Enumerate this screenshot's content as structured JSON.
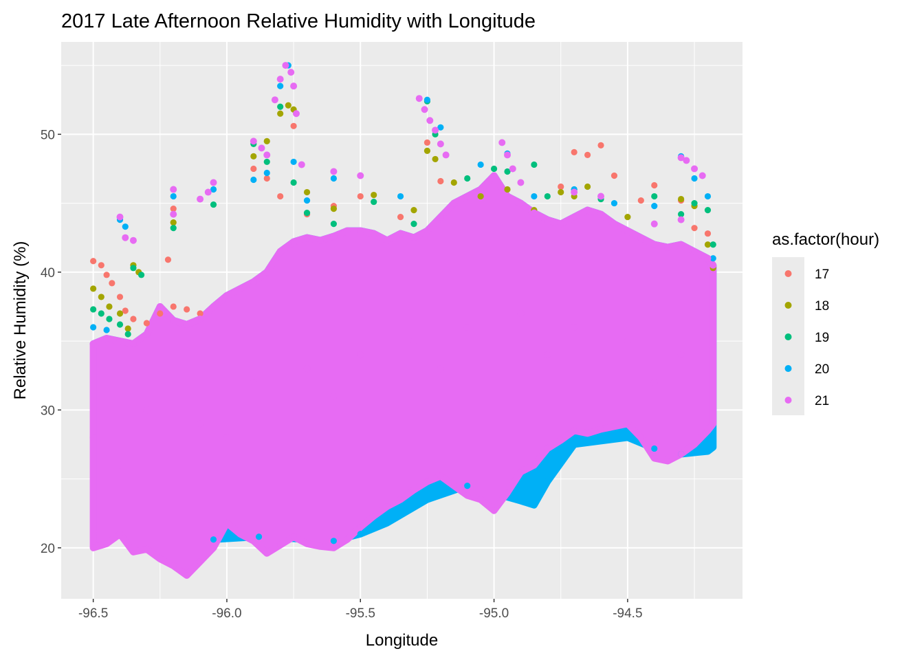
{
  "chart_data": {
    "type": "scatter",
    "title": "2017 Late Afternoon Relative Humidity with Longitude",
    "xlabel": "Longitude",
    "ylabel": "Relative Humidity (%)",
    "xlim": [
      -96.62,
      -94.07
    ],
    "ylim": [
      16.3,
      56.7
    ],
    "x_ticks": [
      -96.5,
      -96.0,
      -95.5,
      -95.0,
      -94.5
    ],
    "x_tick_labels": [
      "-96.5",
      "-96.0",
      "-95.5",
      "-95.0",
      "-94.5"
    ],
    "y_ticks": [
      20,
      30,
      40,
      50
    ],
    "y_tick_labels": [
      "20",
      "30",
      "40",
      "50"
    ],
    "grid": true,
    "background": "#ebebeb",
    "legend": {
      "title": "as.factor(hour)",
      "position": "right"
    },
    "series": [
      {
        "name": "17",
        "color": "#f8766d",
        "points": [
          [
            -96.5,
            40.8
          ],
          [
            -96.47,
            40.5
          ],
          [
            -96.45,
            39.8
          ],
          [
            -96.43,
            39.2
          ],
          [
            -96.4,
            38.2
          ],
          [
            -96.38,
            37.2
          ],
          [
            -96.35,
            36.6
          ],
          [
            -96.3,
            36.3
          ],
          [
            -96.25,
            37.0
          ],
          [
            -96.2,
            37.5
          ],
          [
            -96.15,
            37.3
          ],
          [
            -96.1,
            37.0
          ],
          [
            -96.22,
            40.9
          ],
          [
            -96.2,
            44.6
          ],
          [
            -95.9,
            47.5
          ],
          [
            -95.85,
            46.8
          ],
          [
            -95.8,
            45.5
          ],
          [
            -95.75,
            50.6
          ],
          [
            -95.7,
            44.2
          ],
          [
            -95.6,
            44.8
          ],
          [
            -95.5,
            45.5
          ],
          [
            -95.35,
            44.0
          ],
          [
            -95.25,
            49.4
          ],
          [
            -95.2,
            46.6
          ],
          [
            -94.75,
            46.2
          ],
          [
            -94.7,
            48.7
          ],
          [
            -94.65,
            48.5
          ],
          [
            -94.6,
            49.2
          ],
          [
            -94.55,
            47.0
          ],
          [
            -94.45,
            45.2
          ],
          [
            -94.4,
            46.3
          ],
          [
            -94.3,
            45.2
          ],
          [
            -94.25,
            43.2
          ],
          [
            -94.2,
            42.8
          ],
          [
            -94.18,
            40.5
          ]
        ]
      },
      {
        "name": "18",
        "color": "#a3a500",
        "points": [
          [
            -96.5,
            38.8
          ],
          [
            -96.47,
            38.2
          ],
          [
            -96.44,
            37.5
          ],
          [
            -96.4,
            37.0
          ],
          [
            -96.37,
            35.9
          ],
          [
            -96.35,
            40.5
          ],
          [
            -96.33,
            40.0
          ],
          [
            -96.2,
            43.6
          ],
          [
            -95.9,
            48.4
          ],
          [
            -95.85,
            49.5
          ],
          [
            -95.8,
            51.5
          ],
          [
            -95.77,
            52.1
          ],
          [
            -95.75,
            51.8
          ],
          [
            -95.7,
            45.8
          ],
          [
            -95.6,
            44.6
          ],
          [
            -95.45,
            45.6
          ],
          [
            -95.3,
            44.5
          ],
          [
            -95.25,
            48.8
          ],
          [
            -95.22,
            48.2
          ],
          [
            -95.15,
            46.5
          ],
          [
            -95.05,
            45.5
          ],
          [
            -94.95,
            46.0
          ],
          [
            -94.85,
            44.5
          ],
          [
            -94.75,
            45.8
          ],
          [
            -94.7,
            45.5
          ],
          [
            -94.65,
            46.2
          ],
          [
            -94.5,
            44.0
          ],
          [
            -94.3,
            45.3
          ],
          [
            -94.25,
            44.8
          ],
          [
            -94.2,
            42.0
          ],
          [
            -94.18,
            40.3
          ]
        ]
      },
      {
        "name": "19",
        "color": "#00bf7d",
        "points": [
          [
            -96.5,
            37.3
          ],
          [
            -96.47,
            37.0
          ],
          [
            -96.44,
            36.6
          ],
          [
            -96.4,
            36.2
          ],
          [
            -96.37,
            35.5
          ],
          [
            -96.35,
            40.3
          ],
          [
            -96.32,
            39.8
          ],
          [
            -96.2,
            43.2
          ],
          [
            -96.05,
            44.9
          ],
          [
            -95.9,
            49.3
          ],
          [
            -95.85,
            48.0
          ],
          [
            -95.8,
            52.0
          ],
          [
            -95.75,
            46.5
          ],
          [
            -95.7,
            44.3
          ],
          [
            -95.6,
            43.5
          ],
          [
            -95.45,
            45.1
          ],
          [
            -95.3,
            43.5
          ],
          [
            -95.25,
            52.4
          ],
          [
            -95.22,
            50.0
          ],
          [
            -95.1,
            46.8
          ],
          [
            -95.0,
            47.5
          ],
          [
            -94.95,
            47.3
          ],
          [
            -94.85,
            47.8
          ],
          [
            -94.8,
            45.5
          ],
          [
            -94.7,
            46.0
          ],
          [
            -94.6,
            45.3
          ],
          [
            -94.4,
            45.5
          ],
          [
            -94.3,
            44.2
          ],
          [
            -94.25,
            45.0
          ],
          [
            -94.2,
            44.5
          ],
          [
            -94.18,
            42.0
          ]
        ]
      },
      {
        "name": "20",
        "color": "#00b0f6",
        "points": [
          [
            -96.5,
            36.0
          ],
          [
            -96.45,
            35.8
          ],
          [
            -96.4,
            43.8
          ],
          [
            -96.38,
            43.3
          ],
          [
            -96.2,
            45.5
          ],
          [
            -96.05,
            46.0
          ],
          [
            -95.9,
            46.7
          ],
          [
            -95.85,
            47.2
          ],
          [
            -95.8,
            53.5
          ],
          [
            -95.77,
            55.0
          ],
          [
            -95.75,
            48.0
          ],
          [
            -95.7,
            45.2
          ],
          [
            -95.6,
            46.8
          ],
          [
            -95.5,
            47.0
          ],
          [
            -95.35,
            45.5
          ],
          [
            -95.25,
            52.5
          ],
          [
            -95.2,
            50.5
          ],
          [
            -95.05,
            47.8
          ],
          [
            -94.95,
            48.6
          ],
          [
            -94.85,
            45.5
          ],
          [
            -94.7,
            46.0
          ],
          [
            -94.55,
            45.0
          ],
          [
            -94.4,
            44.8
          ],
          [
            -94.3,
            48.4
          ],
          [
            -94.25,
            46.8
          ],
          [
            -94.2,
            45.5
          ],
          [
            -94.18,
            41.0
          ],
          [
            -95.5,
            21.0
          ],
          [
            -95.25,
            23.5
          ],
          [
            -95.1,
            24.5
          ],
          [
            -94.9,
            23.4
          ],
          [
            -94.85,
            23.1
          ],
          [
            -94.8,
            24.8
          ],
          [
            -94.7,
            27.5
          ],
          [
            -94.5,
            28.0
          ],
          [
            -94.4,
            27.2
          ],
          [
            -94.3,
            26.8
          ],
          [
            -94.2,
            27.0
          ],
          [
            -94.18,
            27.3
          ],
          [
            -95.4,
            21.8
          ],
          [
            -95.6,
            20.5
          ],
          [
            -95.88,
            20.8
          ],
          [
            -96.05,
            20.6
          ]
        ]
      },
      {
        "name": "21",
        "color": "#e76bf3",
        "points": [
          [
            -96.5,
            20.0
          ],
          [
            -96.45,
            20.3
          ],
          [
            -96.4,
            21.0
          ],
          [
            -96.35,
            19.7
          ],
          [
            -96.3,
            19.9
          ],
          [
            -96.25,
            19.2
          ],
          [
            -96.2,
            18.7
          ],
          [
            -96.15,
            18.0
          ],
          [
            -96.1,
            19.0
          ],
          [
            -96.05,
            20.0
          ],
          [
            -96.0,
            21.8
          ],
          [
            -95.95,
            21.0
          ],
          [
            -95.9,
            20.5
          ],
          [
            -95.85,
            19.6
          ],
          [
            -95.8,
            20.2
          ],
          [
            -95.75,
            20.8
          ],
          [
            -95.7,
            20.3
          ],
          [
            -95.65,
            20.1
          ],
          [
            -95.6,
            20.0
          ],
          [
            -95.55,
            20.6
          ],
          [
            -95.5,
            21.5
          ],
          [
            -95.45,
            22.3
          ],
          [
            -95.4,
            23.0
          ],
          [
            -95.35,
            23.5
          ],
          [
            -95.3,
            24.2
          ],
          [
            -95.25,
            24.8
          ],
          [
            -95.2,
            25.2
          ],
          [
            -95.15,
            24.5
          ],
          [
            -95.1,
            23.8
          ],
          [
            -95.05,
            23.5
          ],
          [
            -95.0,
            22.7
          ],
          [
            -94.95,
            24.0
          ],
          [
            -94.9,
            25.5
          ],
          [
            -94.85,
            26.0
          ],
          [
            -94.8,
            27.2
          ],
          [
            -94.75,
            27.8
          ],
          [
            -94.7,
            28.5
          ],
          [
            -94.65,
            28.3
          ],
          [
            -94.6,
            28.6
          ],
          [
            -94.55,
            28.8
          ],
          [
            -94.5,
            29.0
          ],
          [
            -94.45,
            28.0
          ],
          [
            -94.4,
            26.5
          ],
          [
            -94.35,
            26.3
          ],
          [
            -94.3,
            26.8
          ],
          [
            -94.25,
            27.5
          ],
          [
            -94.2,
            28.5
          ],
          [
            -94.18,
            29.0
          ],
          [
            -96.5,
            34.8
          ],
          [
            -96.45,
            35.2
          ],
          [
            -96.4,
            35.0
          ],
          [
            -96.35,
            34.8
          ],
          [
            -96.3,
            35.5
          ],
          [
            -96.25,
            37.5
          ],
          [
            -96.2,
            36.5
          ],
          [
            -96.15,
            36.2
          ],
          [
            -96.1,
            36.6
          ],
          [
            -96.05,
            37.5
          ],
          [
            -96.0,
            38.3
          ],
          [
            -95.95,
            38.8
          ],
          [
            -95.9,
            39.3
          ],
          [
            -95.85,
            40.0
          ],
          [
            -95.8,
            41.5
          ],
          [
            -95.75,
            42.2
          ],
          [
            -95.7,
            42.5
          ],
          [
            -95.65,
            42.3
          ],
          [
            -95.6,
            42.6
          ],
          [
            -95.55,
            43.0
          ],
          [
            -95.5,
            43.0
          ],
          [
            -95.45,
            42.8
          ],
          [
            -95.4,
            42.3
          ],
          [
            -95.35,
            42.8
          ],
          [
            -95.3,
            42.5
          ],
          [
            -95.25,
            43.0
          ],
          [
            -95.2,
            44.0
          ],
          [
            -95.15,
            45.0
          ],
          [
            -95.1,
            45.5
          ],
          [
            -95.05,
            46.0
          ],
          [
            -95.0,
            47.0
          ],
          [
            -94.95,
            45.5
          ],
          [
            -94.9,
            45.0
          ],
          [
            -94.85,
            44.3
          ],
          [
            -94.8,
            43.8
          ],
          [
            -94.75,
            43.5
          ],
          [
            -94.7,
            44.0
          ],
          [
            -94.65,
            44.5
          ],
          [
            -94.6,
            44.2
          ],
          [
            -94.55,
            43.5
          ],
          [
            -94.5,
            43.0
          ],
          [
            -94.45,
            42.5
          ],
          [
            -94.4,
            42.0
          ],
          [
            -94.35,
            41.8
          ],
          [
            -94.3,
            42.0
          ],
          [
            -94.25,
            41.5
          ],
          [
            -94.2,
            41.0
          ],
          [
            -94.18,
            40.5
          ],
          [
            -96.4,
            44.0
          ],
          [
            -96.38,
            42.5
          ],
          [
            -96.35,
            42.3
          ],
          [
            -96.2,
            46.0
          ],
          [
            -96.2,
            44.2
          ],
          [
            -96.05,
            46.5
          ],
          [
            -96.07,
            45.8
          ],
          [
            -96.1,
            45.3
          ],
          [
            -95.9,
            49.5
          ],
          [
            -95.87,
            49.0
          ],
          [
            -95.85,
            48.5
          ],
          [
            -95.82,
            52.5
          ],
          [
            -95.8,
            54.0
          ],
          [
            -95.78,
            55.0
          ],
          [
            -95.76,
            54.5
          ],
          [
            -95.75,
            53.5
          ],
          [
            -95.74,
            51.5
          ],
          [
            -95.72,
            47.8
          ],
          [
            -95.6,
            47.3
          ],
          [
            -95.5,
            47.0
          ],
          [
            -95.28,
            52.6
          ],
          [
            -95.26,
            51.8
          ],
          [
            -95.24,
            51.0
          ],
          [
            -95.22,
            50.3
          ],
          [
            -95.2,
            49.3
          ],
          [
            -95.18,
            48.5
          ],
          [
            -94.97,
            49.4
          ],
          [
            -94.95,
            48.5
          ],
          [
            -94.93,
            47.5
          ],
          [
            -94.9,
            46.5
          ],
          [
            -94.7,
            45.8
          ],
          [
            -94.6,
            45.5
          ],
          [
            -94.3,
            48.3
          ],
          [
            -94.28,
            48.1
          ],
          [
            -94.25,
            47.5
          ],
          [
            -94.22,
            47.0
          ],
          [
            -94.4,
            43.5
          ],
          [
            -94.3,
            43.8
          ],
          [
            -96.5,
            28.0
          ],
          [
            -96.3,
            30.0
          ],
          [
            -96.1,
            29.0
          ],
          [
            -95.9,
            32.0
          ],
          [
            -95.7,
            33.0
          ],
          [
            -95.5,
            34.0
          ],
          [
            -95.3,
            35.0
          ],
          [
            -95.1,
            36.0
          ],
          [
            -94.9,
            37.0
          ],
          [
            -94.7,
            36.0
          ],
          [
            -94.5,
            35.0
          ],
          [
            -94.3,
            34.0
          ],
          [
            -96.4,
            26.0
          ],
          [
            -96.0,
            28.0
          ],
          [
            -95.6,
            31.0
          ],
          [
            -95.2,
            33.0
          ],
          [
            -94.8,
            34.0
          ],
          [
            -94.4,
            32.0
          ]
        ]
      }
    ]
  }
}
